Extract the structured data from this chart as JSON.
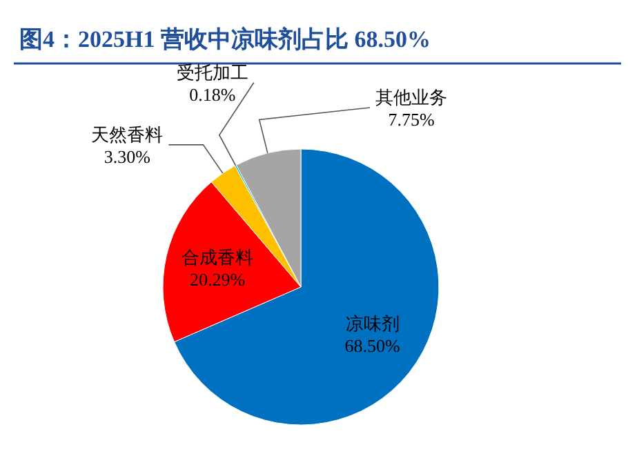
{
  "chart_data": {
    "type": "pie",
    "title": "图4：2025H1 营收中凉味剂占比 68.50%",
    "categories": [
      "凉味剂",
      "合成香料",
      "天然香料",
      "受托加工",
      "其他业务"
    ],
    "values": [
      68.5,
      20.29,
      3.3,
      0.18,
      7.75
    ],
    "value_labels": [
      "68.50%",
      "20.29%",
      "3.30%",
      "0.18%",
      "7.75%"
    ],
    "colors": [
      "#0070c0",
      "#ff0000",
      "#ffc000",
      "#00b0c0",
      "#a5a5a5"
    ],
    "legend": false
  }
}
